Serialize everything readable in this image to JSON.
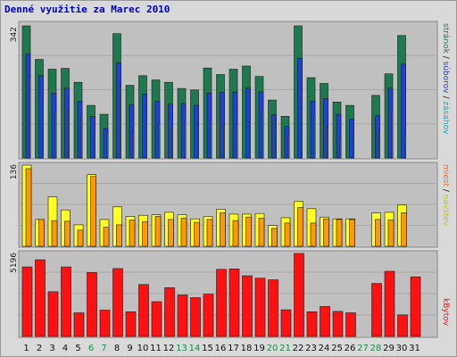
{
  "title": "Denné využitie za Marec 2010",
  "colors": {
    "background": "#d9d9d9",
    "plot_bg": "#c0c0c0",
    "title": "#0000cc",
    "stran": "#1e7a4e",
    "suborov": "#1e3fdc",
    "zasahov": "#22d8f0",
    "navstev": "#ffff22",
    "miest": "#ff9900",
    "kbytov": "#ff1111",
    "weekend_label": "#1e8a4e",
    "weekday_label": "#111111"
  },
  "labels": {
    "top_max": "342",
    "mid_max": "136",
    "bot_max": "5196"
  },
  "legend": {
    "top": [
      {
        "text": "stránok",
        "color": "#1e7a4e"
      },
      {
        "text": " / ",
        "color": "#111111"
      },
      {
        "text": "súborov",
        "color": "#1e3fdc"
      },
      {
        "text": " / ",
        "color": "#111111"
      },
      {
        "text": "zásahov",
        "color": "#1aa8c8"
      }
    ],
    "mid": [
      {
        "text": "miest",
        "color": "#ff6600"
      },
      {
        "text": " / ",
        "color": "#111111"
      },
      {
        "text": "návštev",
        "color": "#c8c800"
      }
    ],
    "bot": [
      {
        "text": "kBytov",
        "color": "#ff1111"
      }
    ]
  },
  "chart_data": [
    {
      "type": "bar",
      "name": "top",
      "categories": [
        "1",
        "2",
        "3",
        "4",
        "5",
        "6",
        "7",
        "8",
        "9",
        "10",
        "11",
        "12",
        "13",
        "14",
        "15",
        "16",
        "17",
        "18",
        "19",
        "20",
        "21",
        "22",
        "23",
        "24",
        "25",
        "26",
        "27",
        "28",
        "29",
        "30",
        "31"
      ],
      "ylim": [
        0,
        342
      ],
      "series": [
        {
          "name": "stránok",
          "values": [
            342,
            255,
            230,
            232,
            196,
            136,
            113,
            322,
            188,
            213,
            202,
            196,
            180,
            176,
            233,
            216,
            230,
            238,
            211,
            150,
            108,
            342,
            208,
            193,
            145,
            136,
            0,
            162,
            218,
            317,
            0
          ]
        },
        {
          "name": "súborov",
          "values": [
            270,
            213,
            168,
            181,
            147,
            107,
            76,
            246,
            138,
            166,
            147,
            139,
            141,
            136,
            168,
            170,
            171,
            181,
            171,
            112,
            82,
            258,
            147,
            154,
            113,
            100,
            0,
            109,
            181,
            243,
            0
          ]
        },
        {
          "name": "zásahov",
          "values": [
            212,
            145,
            119,
            125,
            110,
            60,
            67,
            190,
            69,
            94,
            89,
            78,
            93,
            87,
            93,
            88,
            90,
            94,
            124,
            97,
            58,
            132,
            109,
            80,
            51,
            60,
            0,
            69,
            123,
            66,
            0
          ]
        }
      ]
    },
    {
      "type": "bar",
      "name": "middle",
      "categories": [
        "1",
        "2",
        "3",
        "4",
        "5",
        "6",
        "7",
        "8",
        "9",
        "10",
        "11",
        "12",
        "13",
        "14",
        "15",
        "16",
        "17",
        "18",
        "19",
        "20",
        "21",
        "22",
        "23",
        "24",
        "25",
        "26",
        "27",
        "28",
        "29",
        "30",
        "31"
      ],
      "ylim": [
        0,
        136
      ],
      "series": [
        {
          "name": "návštev",
          "values": [
            136,
            45,
            83,
            61,
            36,
            120,
            45,
            66,
            50,
            52,
            53,
            57,
            53,
            46,
            50,
            62,
            54,
            54,
            55,
            35,
            48,
            75,
            63,
            49,
            46,
            46,
            0,
            56,
            57,
            69,
            0
          ]
        },
        {
          "name": "miest",
          "values": [
            130,
            45,
            43,
            42,
            27,
            117,
            32,
            36,
            44,
            41,
            50,
            45,
            47,
            40,
            45,
            56,
            43,
            49,
            47,
            30,
            39,
            65,
            39,
            46,
            45,
            45,
            0,
            45,
            44,
            56,
            0
          ]
        }
      ]
    },
    {
      "type": "bar",
      "name": "bottom",
      "categories": [
        "1",
        "2",
        "3",
        "4",
        "5",
        "6",
        "7",
        "8",
        "9",
        "10",
        "11",
        "12",
        "13",
        "14",
        "15",
        "16",
        "17",
        "18",
        "19",
        "20",
        "21",
        "22",
        "23",
        "24",
        "25",
        "26",
        "27",
        "28",
        "29",
        "30",
        "31"
      ],
      "ylim": [
        0,
        5196
      ],
      "series": [
        {
          "name": "kBytov",
          "values": [
            4350,
            4800,
            2800,
            4350,
            1480,
            4000,
            1650,
            4250,
            1540,
            3250,
            2180,
            3050,
            2600,
            2430,
            2650,
            4200,
            4230,
            3800,
            3650,
            3550,
            1670,
            5196,
            1550,
            1880,
            1570,
            1480,
            0,
            3320,
            4080,
            1350,
            3730
          ]
        }
      ]
    }
  ],
  "days": [
    {
      "label": "1",
      "weekend": false
    },
    {
      "label": "2",
      "weekend": false
    },
    {
      "label": "3",
      "weekend": false
    },
    {
      "label": "4",
      "weekend": false
    },
    {
      "label": "5",
      "weekend": false
    },
    {
      "label": "6",
      "weekend": true
    },
    {
      "label": "7",
      "weekend": true
    },
    {
      "label": "8",
      "weekend": false
    },
    {
      "label": "9",
      "weekend": false
    },
    {
      "label": "10",
      "weekend": false
    },
    {
      "label": "11",
      "weekend": false
    },
    {
      "label": "12",
      "weekend": false
    },
    {
      "label": "13",
      "weekend": true
    },
    {
      "label": "14",
      "weekend": true
    },
    {
      "label": "15",
      "weekend": false
    },
    {
      "label": "16",
      "weekend": false
    },
    {
      "label": "17",
      "weekend": false
    },
    {
      "label": "18",
      "weekend": false
    },
    {
      "label": "19",
      "weekend": false
    },
    {
      "label": "20",
      "weekend": true
    },
    {
      "label": "21",
      "weekend": true
    },
    {
      "label": "22",
      "weekend": false
    },
    {
      "label": "23",
      "weekend": false
    },
    {
      "label": "24",
      "weekend": false
    },
    {
      "label": "25",
      "weekend": false
    },
    {
      "label": "26",
      "weekend": false
    },
    {
      "label": "27",
      "weekend": true
    },
    {
      "label": "28",
      "weekend": true
    },
    {
      "label": "29",
      "weekend": false
    },
    {
      "label": "30",
      "weekend": false
    },
    {
      "label": "31",
      "weekend": false
    }
  ]
}
